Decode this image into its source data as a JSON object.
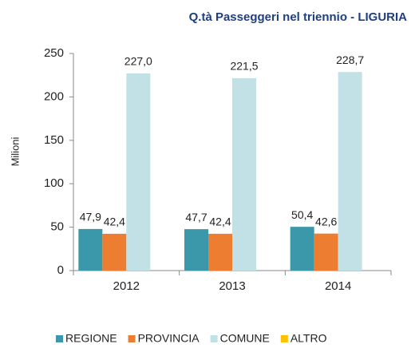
{
  "chart_data": {
    "type": "bar",
    "title": "Q.tà Passeggeri nel triennio - LIGURIA",
    "y_label": "Milioni",
    "categories": [
      "2012",
      "2013",
      "2014"
    ],
    "series": [
      {
        "name": "REGIONE",
        "color": "#3a98aa",
        "values": [
          47.9,
          47.7,
          50.4
        ],
        "value_labels": [
          "47,9",
          "47,7",
          "50,4"
        ]
      },
      {
        "name": "PROVINCIA",
        "color": "#ed7d31",
        "values": [
          42.4,
          42.4,
          42.6
        ],
        "value_labels": [
          "42,4",
          "42,4",
          "42,6"
        ]
      },
      {
        "name": "COMUNE",
        "color": "#c2e1e7",
        "values": [
          227.0,
          221.5,
          228.7
        ],
        "value_labels": [
          "227,0",
          "221,5",
          "228,7"
        ]
      },
      {
        "name": "ALTRO",
        "color": "#ffc000",
        "values": [
          0,
          0,
          0
        ]
      }
    ],
    "ylim": [
      0,
      250
    ],
    "yticks": [
      0,
      50,
      100,
      150,
      200,
      250
    ],
    "legend": "bottom"
  }
}
